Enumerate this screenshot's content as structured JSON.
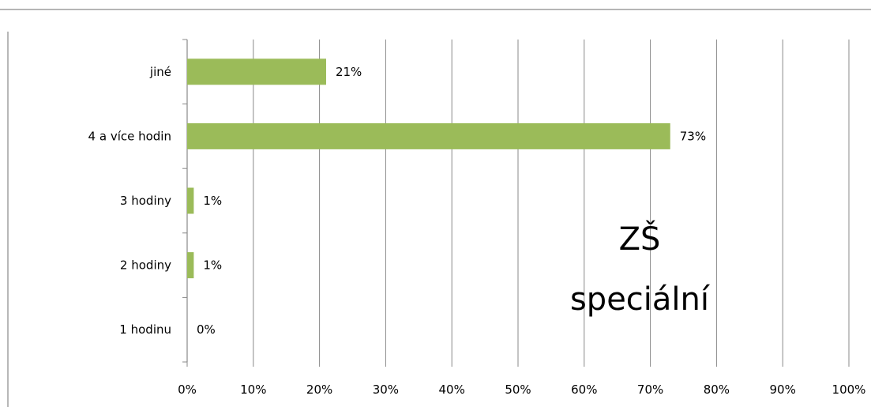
{
  "chart_data": {
    "type": "bar",
    "orientation": "horizontal",
    "categories": [
      "jiné",
      "4 a více hodin",
      "3 hodiny",
      "2 hodiny",
      "1 hodinu"
    ],
    "values": [
      21,
      73,
      1,
      1,
      0
    ],
    "data_labels": [
      "21%",
      "73%",
      "1%",
      "1%",
      "0%"
    ],
    "xlim": [
      0,
      100
    ],
    "x_ticks": [
      "0%",
      "10%",
      "20%",
      "30%",
      "40%",
      "50%",
      "60%",
      "70%",
      "80%",
      "90%",
      "100%"
    ],
    "grid": "vertical",
    "legend": "none",
    "annotation": [
      "ZŠ",
      "speciální"
    ]
  },
  "colors": {
    "bar": "#9bbb59",
    "grid": "#898989",
    "axis": "#898989",
    "frame": "#898989"
  }
}
